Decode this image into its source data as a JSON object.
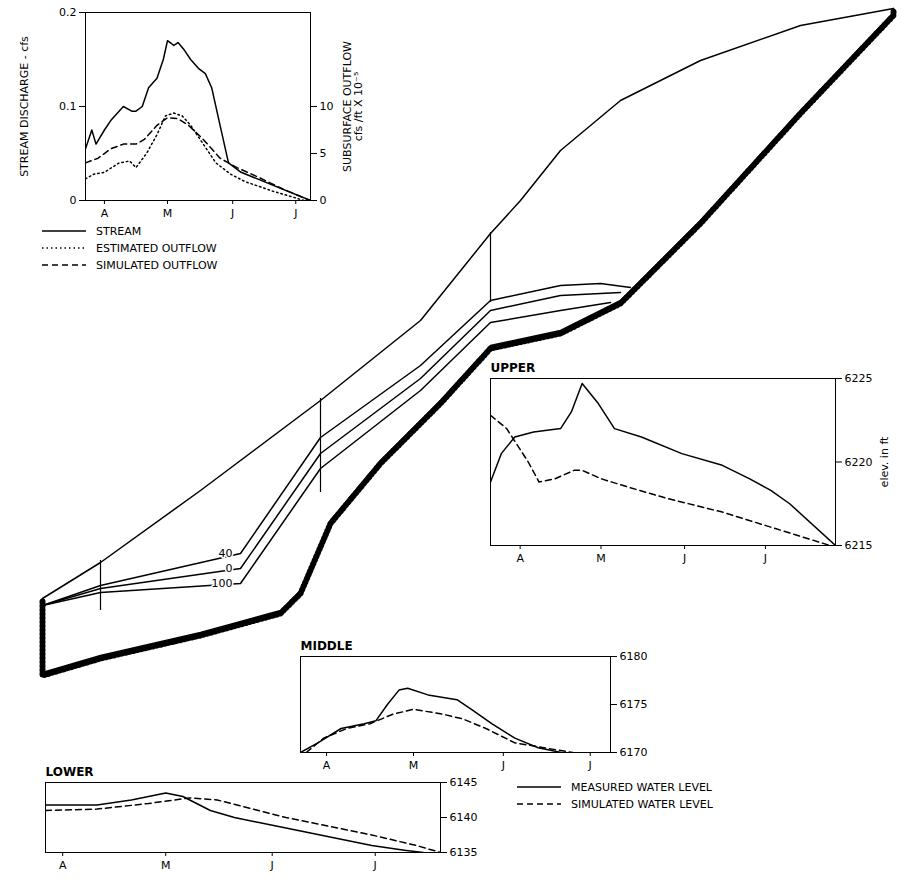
{
  "chart_data": [
    {
      "type": "cross_section",
      "tick_labels": false,
      "xlim": [
        0,
        902
      ],
      "ylim": [
        0,
        883
      ],
      "series": [
        {
          "color": "#000000",
          "line_style": "solid",
          "x": [
            42,
            100,
            200,
            320,
            420,
            490,
            520,
            560,
            620,
            700,
            800,
            893
          ],
          "values": [
            285,
            321,
            393,
            483,
            563,
            650,
            683,
            733,
            783,
            823,
            858,
            875
          ]
        },
        {
          "color": "#000000",
          "line_style": "hatched",
          "x": [
            42,
            42,
            100,
            200,
            280,
            300,
            330,
            380,
            440,
            490,
            560,
            620,
            700,
            800,
            893,
            893
          ],
          "values": [
            285,
            211,
            228,
            251,
            273,
            293,
            363,
            423,
            483,
            538,
            553,
            583,
            663,
            773,
            871,
            875
          ]
        },
        {
          "name": "40",
          "color": "#000000",
          "line_style": "solid",
          "x": [
            42,
            100,
            240,
            320,
            420,
            490,
            560,
            600,
            630
          ],
          "values": [
            278,
            298,
            330,
            446,
            518,
            583,
            598,
            600,
            596
          ]
        },
        {
          "name": "0",
          "color": "#000000",
          "line_style": "solid",
          "x": [
            42,
            100,
            240,
            320,
            420,
            490,
            560,
            620
          ],
          "values": [
            278,
            295,
            315,
            430,
            505,
            573,
            588,
            591
          ]
        },
        {
          "name": "100",
          "color": "#000000",
          "line_style": "solid",
          "x": [
            42,
            100,
            240,
            320,
            420,
            490,
            560,
            610
          ],
          "values": [
            278,
            291,
            300,
            415,
            493,
            561,
            573,
            581
          ]
        }
      ],
      "wells": [
        {
          "x": 100,
          "y": [
            273,
            323
          ]
        },
        {
          "x": 320,
          "y": [
            391,
            485
          ]
        },
        {
          "x": 490,
          "y": [
            581,
            651
          ]
        }
      ]
    },
    {
      "type": "line",
      "legend": "bottom",
      "xlim": [
        6,
        113
      ],
      "xticks": [
        {
          "value": 15,
          "label": "A"
        },
        {
          "value": 45,
          "label": "M"
        },
        {
          "value": 76,
          "label": "J"
        },
        {
          "value": 106,
          "label": "J"
        }
      ],
      "ylim": [
        0,
        0.2
      ],
      "yticks": [
        0,
        0.1,
        0.2
      ],
      "y_label": "STREAM DISCHARGE - cfs",
      "y2lim": [
        0,
        20
      ],
      "y2ticks": [
        0,
        5,
        10
      ],
      "y2_label": "SUBSURFACE OUTFLOW cfs /ft X 10⁻⁵",
      "series": [
        {
          "name": "STREAM",
          "color": "#000000",
          "line_style": "solid",
          "x": [
            6,
            9,
            11,
            15,
            18,
            24,
            28,
            30,
            33,
            36,
            40,
            43,
            45,
            48,
            50,
            53,
            56,
            60,
            63,
            66,
            70,
            74,
            80,
            113
          ],
          "values": [
            0.055,
            0.075,
            0.06,
            0.075,
            0.085,
            0.1,
            0.095,
            0.095,
            0.1,
            0.12,
            0.13,
            0.15,
            0.17,
            0.165,
            0.168,
            0.16,
            0.15,
            0.14,
            0.135,
            0.12,
            0.08,
            0.04,
            0.03,
            0
          ]
        },
        {
          "name": "ESTIMATED OUTFLOW",
          "color": "#000000",
          "line_style": "dotted",
          "axis": "y2",
          "x": [
            6,
            10,
            15,
            22,
            27,
            30,
            35,
            40,
            44,
            48,
            52,
            56,
            62,
            68,
            75,
            82,
            95,
            110
          ],
          "values": [
            2.3,
            2.8,
            3,
            4,
            4.2,
            3.5,
            5,
            7,
            9,
            9.3,
            9,
            8,
            6,
            4,
            2.8,
            2,
            1,
            0
          ]
        },
        {
          "name": "SIMULATED OUTFLOW",
          "color": "#000000",
          "line_style": "dashed",
          "axis": "y2",
          "x": [
            6,
            12,
            18,
            24,
            30,
            34,
            40,
            45,
            50,
            55,
            62,
            70,
            78,
            88,
            100,
            113
          ],
          "values": [
            4,
            4.5,
            5.5,
            6,
            6,
            6.5,
            8,
            8.8,
            8.7,
            8,
            6.5,
            4.5,
            3.5,
            2.5,
            1.2,
            0
          ]
        }
      ]
    },
    {
      "type": "line",
      "title": "UPPER",
      "xlim": [
        4,
        132
      ],
      "xticks": [
        {
          "value": 15,
          "label": "A"
        },
        {
          "value": 45,
          "label": "M"
        },
        {
          "value": 76,
          "label": "J"
        },
        {
          "value": 106,
          "label": "J"
        }
      ],
      "ylim": [
        6215,
        6225
      ],
      "yticks": [
        6215,
        6220,
        6225
      ],
      "y_label": "elev. in ft",
      "series": [
        {
          "name": "MEASURED WATER LEVEL",
          "color": "#000000",
          "line_style": "solid",
          "x": [
            4,
            8,
            13,
            20,
            30,
            34,
            38,
            44,
            50,
            60,
            75,
            90,
            100,
            108,
            115,
            132
          ],
          "values": [
            6218.8,
            6220.5,
            6221.5,
            6221.8,
            6222,
            6223,
            6224.7,
            6223.5,
            6222,
            6221.5,
            6220.5,
            6219.8,
            6219,
            6218.3,
            6217.5,
            6215
          ]
        },
        {
          "name": "SIMULATED WATER LEVEL",
          "color": "#000000",
          "line_style": "dashed",
          "x": [
            4,
            10,
            18,
            22,
            28,
            35,
            38,
            45,
            55,
            70,
            90,
            110,
            130
          ],
          "values": [
            6222.8,
            6222,
            6220,
            6218.8,
            6219,
            6219.5,
            6219.5,
            6219,
            6218.5,
            6217.8,
            6217,
            6216,
            6215
          ]
        }
      ]
    },
    {
      "type": "line",
      "title": "MIDDLE",
      "xlim": [
        6,
        113
      ],
      "xticks": [
        {
          "value": 15,
          "label": "A"
        },
        {
          "value": 45,
          "label": "M"
        },
        {
          "value": 76,
          "label": "J"
        },
        {
          "value": 106,
          "label": "J"
        }
      ],
      "ylim": [
        6170,
        6180
      ],
      "yticks": [
        6170,
        6175,
        6180
      ],
      "series": [
        {
          "name": "MEASURED WATER LEVEL",
          "color": "#000000",
          "line_style": "solid",
          "x": [
            6,
            12,
            20,
            28,
            32,
            36,
            40,
            43,
            50,
            60,
            65,
            72,
            80,
            88,
            96
          ],
          "values": [
            6170,
            6171,
            6172.5,
            6173,
            6173.3,
            6175,
            6176.5,
            6176.7,
            6176,
            6175.5,
            6174.5,
            6173,
            6171.5,
            6170.5,
            6170
          ]
        },
        {
          "name": "SIMULATED WATER LEVEL",
          "color": "#000000",
          "line_style": "dashed",
          "x": [
            8,
            14,
            22,
            30,
            38,
            45,
            55,
            62,
            70,
            80,
            90,
            100
          ],
          "values": [
            6170,
            6171.5,
            6172.5,
            6173,
            6174,
            6174.5,
            6174,
            6173.5,
            6172.5,
            6171,
            6170.5,
            6170
          ]
        }
      ]
    },
    {
      "type": "line",
      "title": "LOWER",
      "legend": "right",
      "xlim": [
        10,
        125
      ],
      "xticks": [
        {
          "value": 15,
          "label": "A"
        },
        {
          "value": 45,
          "label": "M"
        },
        {
          "value": 76,
          "label": "J"
        },
        {
          "value": 106,
          "label": "J"
        }
      ],
      "ylim": [
        6135,
        6145
      ],
      "yticks": [
        6135,
        6140,
        6145
      ],
      "series": [
        {
          "name": "MEASURED WATER LEVEL",
          "color": "#000000",
          "line_style": "solid",
          "x": [
            10,
            25,
            35,
            45,
            50,
            58,
            65,
            75,
            85,
            95,
            105,
            115,
            120
          ],
          "values": [
            6141.8,
            6141.8,
            6142.5,
            6143.5,
            6143,
            6141,
            6140,
            6139,
            6138,
            6137,
            6136,
            6135.3,
            6135
          ]
        },
        {
          "name": "SIMULATED WATER LEVEL",
          "color": "#000000",
          "line_style": "dashed",
          "x": [
            10,
            25,
            40,
            52,
            60,
            72,
            80,
            90,
            105,
            118,
            125
          ],
          "values": [
            6141,
            6141.2,
            6142,
            6142.8,
            6142.5,
            6141,
            6140,
            6139,
            6137.5,
            6136,
            6135
          ]
        }
      ]
    }
  ]
}
